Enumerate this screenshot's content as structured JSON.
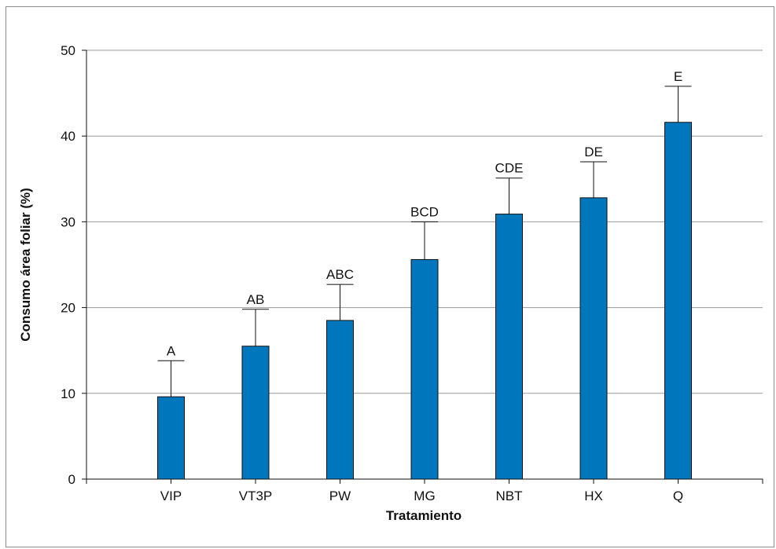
{
  "chart_data": {
    "type": "bar",
    "title": "",
    "xlabel": "Tratamiento",
    "ylabel": "Consumo área foliar (%)",
    "ylim": [
      0,
      50
    ],
    "yticks": [
      0,
      10,
      20,
      30,
      40,
      50
    ],
    "grid": true,
    "categories": [
      "VIP",
      "VT3P",
      "PW",
      "MG",
      "NBT",
      "HX",
      "Q"
    ],
    "values": [
      9.6,
      15.5,
      18.5,
      25.6,
      30.9,
      32.8,
      41.6
    ],
    "error_upper": [
      13.8,
      19.8,
      22.7,
      30.0,
      35.1,
      37.0,
      45.8
    ],
    "group_labels": [
      "A",
      "AB",
      "ABC",
      "BCD",
      "CDE",
      "DE",
      "E"
    ],
    "bar_color": "#0077bd",
    "grid_color": "#9a9a9a"
  }
}
